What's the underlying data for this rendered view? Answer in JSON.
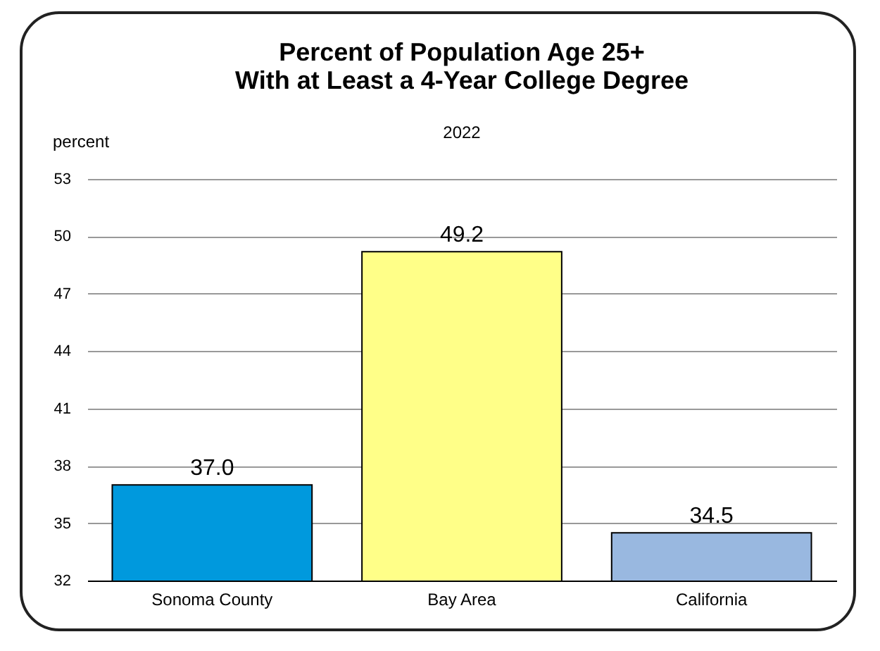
{
  "chart_data": {
    "type": "bar",
    "title": "Percent of Population Age 25+\nWith at Least a 4-Year College Degree",
    "subtitle": "2022",
    "ylabel": "percent",
    "categories": [
      "Sonoma County",
      "Bay Area",
      "California"
    ],
    "values": [
      37.0,
      49.2,
      34.5
    ],
    "colors": [
      "#0099dd",
      "#ffff88",
      "#99b8e0"
    ],
    "value_labels": [
      "37.0",
      "49.2",
      "34.5"
    ],
    "ylim": [
      32,
      53
    ],
    "yticks": [
      32,
      35,
      38,
      41,
      44,
      47,
      50,
      53
    ],
    "grid": "y"
  }
}
